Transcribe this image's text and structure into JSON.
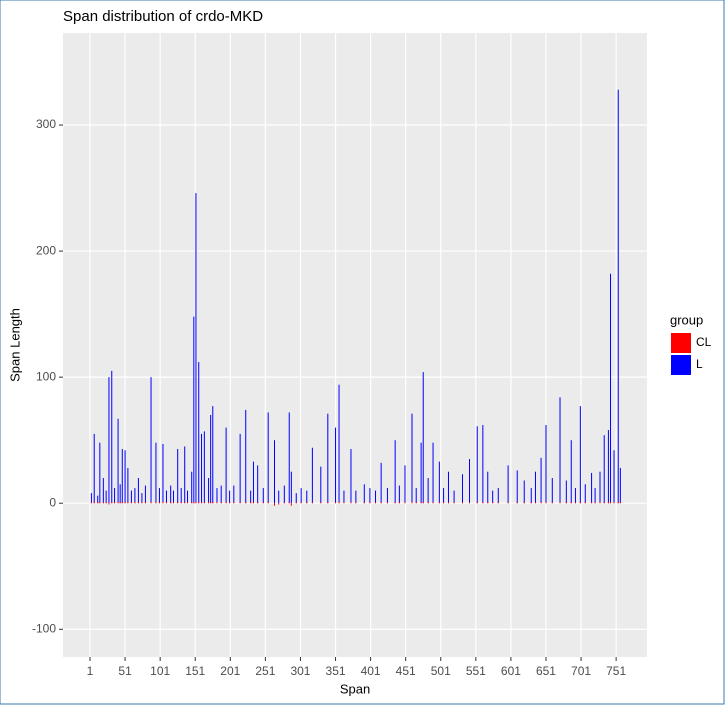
{
  "chart_data": {
    "type": "bar",
    "title": "Span distribution of crdo-MKD",
    "x_label": "Span",
    "y_label": "Span Length",
    "legend_title": "group",
    "x": [
      3,
      7,
      12,
      15,
      20,
      24,
      28,
      32,
      36,
      41,
      44,
      47,
      51,
      55,
      60,
      65,
      70,
      75,
      80,
      88,
      95,
      100,
      105,
      110,
      116,
      120,
      126,
      131,
      136,
      140,
      146,
      149,
      152,
      156,
      160,
      164,
      170,
      173,
      176,
      182,
      188,
      195,
      200,
      206,
      215,
      223,
      230,
      234,
      240,
      248,
      255,
      264,
      270,
      278,
      285,
      288,
      295,
      302,
      310,
      318,
      330,
      340,
      351,
      356,
      363,
      373,
      380,
      392,
      400,
      408,
      416,
      425,
      436,
      442,
      450,
      460,
      466,
      473,
      476,
      483,
      490,
      499,
      505,
      512,
      520,
      532,
      542,
      553,
      561,
      568,
      575,
      583,
      597,
      610,
      620,
      630,
      636,
      644,
      651,
      660,
      671,
      680,
      687,
      693,
      700,
      707,
      716,
      721,
      728,
      734,
      740,
      743,
      748,
      754,
      757
    ],
    "series": [
      {
        "name": "CL",
        "color": "#ff0000",
        "values": [
          1,
          1,
          1,
          1,
          1,
          1,
          -1,
          1,
          1,
          1,
          1,
          1,
          1,
          1,
          1,
          1,
          1,
          1,
          1,
          1,
          1,
          1,
          1,
          1,
          1,
          1,
          1,
          1,
          1,
          1,
          1,
          1,
          1,
          1,
          1,
          1,
          1,
          1,
          1,
          1,
          1,
          1,
          1,
          1,
          1,
          1,
          1,
          1,
          1,
          1,
          1,
          -2,
          -1,
          1,
          1,
          -2,
          1,
          1,
          1,
          1,
          1,
          1,
          1,
          1,
          1,
          1,
          1,
          1,
          1,
          1,
          1,
          1,
          1,
          1,
          1,
          1,
          1,
          1,
          1,
          1,
          1,
          1,
          1,
          1,
          1,
          1,
          1,
          1,
          1,
          1,
          1,
          1,
          1,
          1,
          1,
          1,
          1,
          1,
          1,
          1,
          1,
          1,
          1,
          1,
          1,
          1,
          1,
          1,
          1,
          1,
          1,
          1,
          1,
          1,
          1
        ]
      },
      {
        "name": "L",
        "color": "#0000ff",
        "values": [
          8,
          55,
          6,
          48,
          20,
          10,
          100,
          105,
          12,
          67,
          15,
          43,
          42,
          28,
          10,
          12,
          20,
          8,
          14,
          100,
          48,
          12,
          47,
          10,
          14,
          10,
          43,
          12,
          45,
          10,
          25,
          148,
          246,
          112,
          55,
          57,
          20,
          70,
          77,
          12,
          14,
          60,
          10,
          14,
          55,
          74,
          10,
          33,
          30,
          12,
          72,
          50,
          10,
          14,
          72,
          25,
          8,
          12,
          10,
          44,
          29,
          71,
          60,
          94,
          10,
          43,
          10,
          15,
          12,
          10,
          32,
          12,
          50,
          14,
          30,
          71,
          12,
          48,
          104,
          20,
          48,
          33,
          12,
          25,
          10,
          23,
          35,
          61,
          62,
          25,
          10,
          12,
          30,
          26,
          18,
          12,
          25,
          36,
          62,
          20,
          84,
          18,
          50,
          12,
          77,
          15,
          24,
          12,
          25,
          54,
          58,
          182,
          42,
          328,
          28
        ]
      }
    ],
    "xlim": [
      -37.5,
      795
    ],
    "xticks": [
      1,
      51,
      101,
      151,
      201,
      251,
      301,
      351,
      401,
      451,
      501,
      551,
      601,
      651,
      701,
      751
    ],
    "ylim": [
      -122,
      373
    ],
    "yticks": [
      -100,
      0,
      100,
      200,
      300
    ],
    "grid": true,
    "legend": "right"
  }
}
